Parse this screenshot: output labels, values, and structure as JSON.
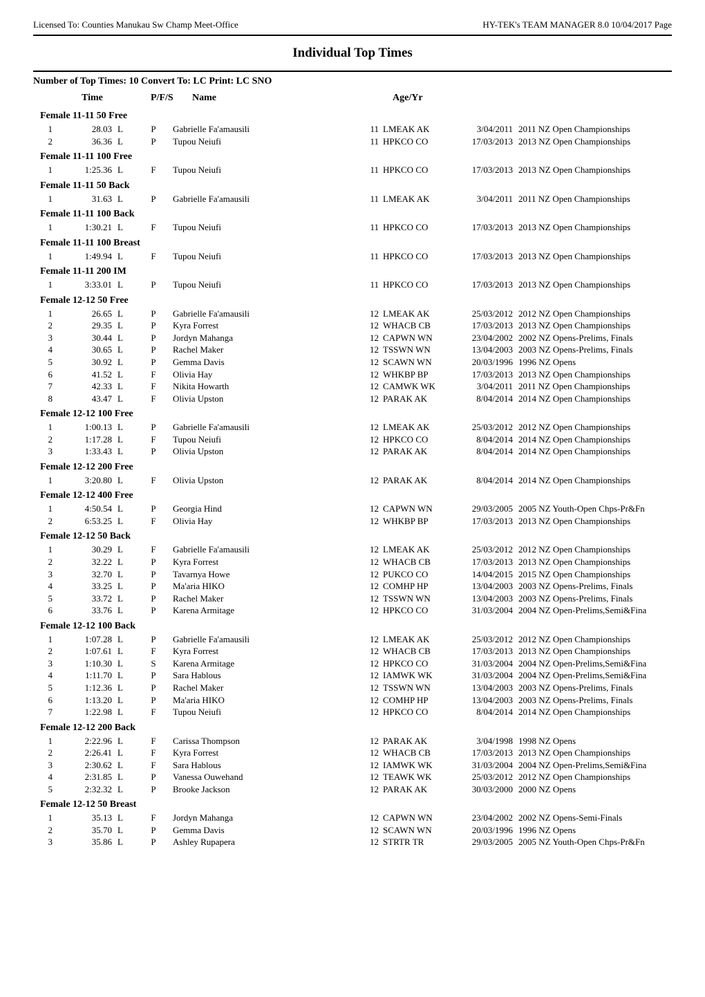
{
  "header": {
    "left": "Licensed To: Counties Manukau Sw Champ Meet-Office",
    "right": "HY-TEK's TEAM MANAGER 8.0   10/04/2017  Page"
  },
  "title": "Individual Top Times",
  "subheader": "Number of Top Times: 10  Convert To: LC  Print: LC  SNO",
  "columns": {
    "time": "Time",
    "pfs": "P/F/S",
    "name": "Name",
    "age": "Age/Yr"
  },
  "events": [
    {
      "title": "Female 11-11 50 Free",
      "rows": [
        {
          "place": "1",
          "time": "28.03",
          "flag": "L",
          "pfs": "P",
          "name": "Gabrielle Fa'amausili",
          "age": "11",
          "team": "LMEAK AK",
          "date": "3/04/2011",
          "meet": "2011 NZ Open Championships"
        },
        {
          "place": "2",
          "time": "36.36",
          "flag": "L",
          "pfs": "P",
          "name": "Tupou Neiufi",
          "age": "11",
          "team": "HPKCO CO",
          "date": "17/03/2013",
          "meet": "2013 NZ Open Championships"
        }
      ]
    },
    {
      "title": "Female 11-11 100 Free",
      "rows": [
        {
          "place": "1",
          "time": "1:25.36",
          "flag": "L",
          "pfs": "F",
          "name": "Tupou Neiufi",
          "age": "11",
          "team": "HPKCO CO",
          "date": "17/03/2013",
          "meet": "2013 NZ Open Championships"
        }
      ]
    },
    {
      "title": "Female 11-11 50 Back",
      "rows": [
        {
          "place": "1",
          "time": "31.63",
          "flag": "L",
          "pfs": "P",
          "name": "Gabrielle Fa'amausili",
          "age": "11",
          "team": "LMEAK AK",
          "date": "3/04/2011",
          "meet": "2011 NZ Open Championships"
        }
      ]
    },
    {
      "title": "Female 11-11 100 Back",
      "rows": [
        {
          "place": "1",
          "time": "1:30.21",
          "flag": "L",
          "pfs": "F",
          "name": "Tupou Neiufi",
          "age": "11",
          "team": "HPKCO CO",
          "date": "17/03/2013",
          "meet": "2013 NZ Open Championships"
        }
      ]
    },
    {
      "title": "Female 11-11 100 Breast",
      "rows": [
        {
          "place": "1",
          "time": "1:49.94",
          "flag": "L",
          "pfs": "F",
          "name": "Tupou Neiufi",
          "age": "11",
          "team": "HPKCO CO",
          "date": "17/03/2013",
          "meet": "2013 NZ Open Championships"
        }
      ]
    },
    {
      "title": "Female 11-11 200 IM",
      "rows": [
        {
          "place": "1",
          "time": "3:33.01",
          "flag": "L",
          "pfs": "P",
          "name": "Tupou Neiufi",
          "age": "11",
          "team": "HPKCO CO",
          "date": "17/03/2013",
          "meet": "2013 NZ Open Championships"
        }
      ]
    },
    {
      "title": "Female 12-12 50 Free",
      "rows": [
        {
          "place": "1",
          "time": "26.65",
          "flag": "L",
          "pfs": "P",
          "name": "Gabrielle Fa'amausili",
          "age": "12",
          "team": "LMEAK AK",
          "date": "25/03/2012",
          "meet": "2012 NZ Open Championships"
        },
        {
          "place": "2",
          "time": "29.35",
          "flag": "L",
          "pfs": "P",
          "name": "Kyra Forrest",
          "age": "12",
          "team": "WHACB CB",
          "date": "17/03/2013",
          "meet": "2013 NZ Open Championships"
        },
        {
          "place": "3",
          "time": "30.44",
          "flag": "L",
          "pfs": "P",
          "name": "Jordyn Mahanga",
          "age": "12",
          "team": "CAPWN WN",
          "date": "23/04/2002",
          "meet": "2002 NZ Opens-Prelims, Finals"
        },
        {
          "place": "4",
          "time": "30.65",
          "flag": "L",
          "pfs": "P",
          "name": "Rachel Maker",
          "age": "12",
          "team": "TSSWN WN",
          "date": "13/04/2003",
          "meet": "2003 NZ Opens-Prelims, Finals"
        },
        {
          "place": "5",
          "time": "30.92",
          "flag": "L",
          "pfs": "P",
          "name": "Gemma Davis",
          "age": "12",
          "team": "SCAWN WN",
          "date": "20/03/1996",
          "meet": "1996 NZ Opens"
        },
        {
          "place": "6",
          "time": "41.52",
          "flag": "L",
          "pfs": "F",
          "name": "Olivia Hay",
          "age": "12",
          "team": "WHKBP BP",
          "date": "17/03/2013",
          "meet": "2013 NZ Open Championships"
        },
        {
          "place": "7",
          "time": "42.33",
          "flag": "L",
          "pfs": "F",
          "name": "Nikita Howarth",
          "age": "12",
          "team": "CAMWK WK",
          "date": "3/04/2011",
          "meet": "2011 NZ Open Championships"
        },
        {
          "place": "8",
          "time": "43.47",
          "flag": "L",
          "pfs": "F",
          "name": "Olivia Upston",
          "age": "12",
          "team": "PARAK AK",
          "date": "8/04/2014",
          "meet": "2014 NZ Open Championships"
        }
      ]
    },
    {
      "title": "Female 12-12 100 Free",
      "rows": [
        {
          "place": "1",
          "time": "1:00.13",
          "flag": "L",
          "pfs": "P",
          "name": "Gabrielle Fa'amausili",
          "age": "12",
          "team": "LMEAK AK",
          "date": "25/03/2012",
          "meet": "2012 NZ Open Championships"
        },
        {
          "place": "2",
          "time": "1:17.28",
          "flag": "L",
          "pfs": "F",
          "name": "Tupou Neiufi",
          "age": "12",
          "team": "HPKCO CO",
          "date": "8/04/2014",
          "meet": "2014 NZ Open Championships"
        },
        {
          "place": "3",
          "time": "1:33.43",
          "flag": "L",
          "pfs": "P",
          "name": "Olivia Upston",
          "age": "12",
          "team": "PARAK AK",
          "date": "8/04/2014",
          "meet": "2014 NZ Open Championships"
        }
      ]
    },
    {
      "title": "Female 12-12 200 Free",
      "rows": [
        {
          "place": "1",
          "time": "3:20.80",
          "flag": "L",
          "pfs": "F",
          "name": "Olivia Upston",
          "age": "12",
          "team": "PARAK AK",
          "date": "8/04/2014",
          "meet": "2014 NZ Open Championships"
        }
      ]
    },
    {
      "title": "Female 12-12 400 Free",
      "rows": [
        {
          "place": "1",
          "time": "4:50.54",
          "flag": "L",
          "pfs": "P",
          "name": "Georgia Hind",
          "age": "12",
          "team": "CAPWN WN",
          "date": "29/03/2005",
          "meet": "2005 NZ Youth-Open Chps-Pr&Fn"
        },
        {
          "place": "2",
          "time": "6:53.25",
          "flag": "L",
          "pfs": "F",
          "name": "Olivia Hay",
          "age": "12",
          "team": "WHKBP BP",
          "date": "17/03/2013",
          "meet": "2013 NZ Open Championships"
        }
      ]
    },
    {
      "title": "Female 12-12 50 Back",
      "rows": [
        {
          "place": "1",
          "time": "30.29",
          "flag": "L",
          "pfs": "F",
          "name": "Gabrielle Fa'amausili",
          "age": "12",
          "team": "LMEAK AK",
          "date": "25/03/2012",
          "meet": "2012 NZ Open Championships"
        },
        {
          "place": "2",
          "time": "32.22",
          "flag": "L",
          "pfs": "P",
          "name": "Kyra Forrest",
          "age": "12",
          "team": "WHACB CB",
          "date": "17/03/2013",
          "meet": "2013 NZ Open Championships"
        },
        {
          "place": "3",
          "time": "32.70",
          "flag": "L",
          "pfs": "P",
          "name": "Tavarnya Howe",
          "age": "12",
          "team": "PUKCO CO",
          "date": "14/04/2015",
          "meet": "2015 NZ Open Championships"
        },
        {
          "place": "4",
          "time": "33.25",
          "flag": "L",
          "pfs": "P",
          "name": "Ma'aria HIKO",
          "age": "12",
          "team": "COMHP HP",
          "date": "13/04/2003",
          "meet": "2003 NZ Opens-Prelims, Finals"
        },
        {
          "place": "5",
          "time": "33.72",
          "flag": "L",
          "pfs": "P",
          "name": "Rachel Maker",
          "age": "12",
          "team": "TSSWN WN",
          "date": "13/04/2003",
          "meet": "2003 NZ Opens-Prelims, Finals"
        },
        {
          "place": "6",
          "time": "33.76",
          "flag": "L",
          "pfs": "P",
          "name": "Karena Armitage",
          "age": "12",
          "team": "HPKCO CO",
          "date": "31/03/2004",
          "meet": "2004 NZ Open-Prelims,Semi&Fina"
        }
      ]
    },
    {
      "title": "Female 12-12 100 Back",
      "rows": [
        {
          "place": "1",
          "time": "1:07.28",
          "flag": "L",
          "pfs": "P",
          "name": "Gabrielle Fa'amausili",
          "age": "12",
          "team": "LMEAK AK",
          "date": "25/03/2012",
          "meet": "2012 NZ Open Championships"
        },
        {
          "place": "2",
          "time": "1:07.61",
          "flag": "L",
          "pfs": "F",
          "name": "Kyra Forrest",
          "age": "12",
          "team": "WHACB CB",
          "date": "17/03/2013",
          "meet": "2013 NZ Open Championships"
        },
        {
          "place": "3",
          "time": "1:10.30",
          "flag": "L",
          "pfs": "S",
          "name": "Karena Armitage",
          "age": "12",
          "team": "HPKCO CO",
          "date": "31/03/2004",
          "meet": "2004 NZ Open-Prelims,Semi&Fina"
        },
        {
          "place": "4",
          "time": "1:11.70",
          "flag": "L",
          "pfs": "P",
          "name": "Sara Hablous",
          "age": "12",
          "team": "IAMWK WK",
          "date": "31/03/2004",
          "meet": "2004 NZ Open-Prelims,Semi&Fina"
        },
        {
          "place": "5",
          "time": "1:12.36",
          "flag": "L",
          "pfs": "P",
          "name": "Rachel Maker",
          "age": "12",
          "team": "TSSWN WN",
          "date": "13/04/2003",
          "meet": "2003 NZ Opens-Prelims, Finals"
        },
        {
          "place": "6",
          "time": "1:13.20",
          "flag": "L",
          "pfs": "P",
          "name": "Ma'aria HIKO",
          "age": "12",
          "team": "COMHP HP",
          "date": "13/04/2003",
          "meet": "2003 NZ Opens-Prelims, Finals"
        },
        {
          "place": "7",
          "time": "1:22.98",
          "flag": "L",
          "pfs": "F",
          "name": "Tupou Neiufi",
          "age": "12",
          "team": "HPKCO CO",
          "date": "8/04/2014",
          "meet": "2014 NZ Open Championships"
        }
      ]
    },
    {
      "title": "Female 12-12 200 Back",
      "rows": [
        {
          "place": "1",
          "time": "2:22.96",
          "flag": "L",
          "pfs": "F",
          "name": "Carissa Thompson",
          "age": "12",
          "team": "PARAK AK",
          "date": "3/04/1998",
          "meet": "1998 NZ Opens"
        },
        {
          "place": "2",
          "time": "2:26.41",
          "flag": "L",
          "pfs": "F",
          "name": "Kyra Forrest",
          "age": "12",
          "team": "WHACB CB",
          "date": "17/03/2013",
          "meet": "2013 NZ Open Championships"
        },
        {
          "place": "3",
          "time": "2:30.62",
          "flag": "L",
          "pfs": "F",
          "name": "Sara Hablous",
          "age": "12",
          "team": "IAMWK WK",
          "date": "31/03/2004",
          "meet": "2004 NZ Open-Prelims,Semi&Fina"
        },
        {
          "place": "4",
          "time": "2:31.85",
          "flag": "L",
          "pfs": "P",
          "name": "Vanessa Ouwehand",
          "age": "12",
          "team": "TEAWK WK",
          "date": "25/03/2012",
          "meet": "2012 NZ Open Championships"
        },
        {
          "place": "5",
          "time": "2:32.32",
          "flag": "L",
          "pfs": "P",
          "name": "Brooke Jackson",
          "age": "12",
          "team": "PARAK AK",
          "date": "30/03/2000",
          "meet": "2000 NZ Opens"
        }
      ]
    },
    {
      "title": "Female 12-12 50 Breast",
      "rows": [
        {
          "place": "1",
          "time": "35.13",
          "flag": "L",
          "pfs": "F",
          "name": "Jordyn Mahanga",
          "age": "12",
          "team": "CAPWN WN",
          "date": "23/04/2002",
          "meet": "2002 NZ Opens-Semi-Finals"
        },
        {
          "place": "2",
          "time": "35.70",
          "flag": "L",
          "pfs": "P",
          "name": "Gemma Davis",
          "age": "12",
          "team": "SCAWN WN",
          "date": "20/03/1996",
          "meet": "1996 NZ Opens"
        },
        {
          "place": "3",
          "time": "35.86",
          "flag": "L",
          "pfs": "P",
          "name": "Ashley Rupapera",
          "age": "12",
          "team": "STRTR TR",
          "date": "29/03/2005",
          "meet": "2005 NZ Youth-Open Chps-Pr&Fn"
        }
      ]
    }
  ]
}
